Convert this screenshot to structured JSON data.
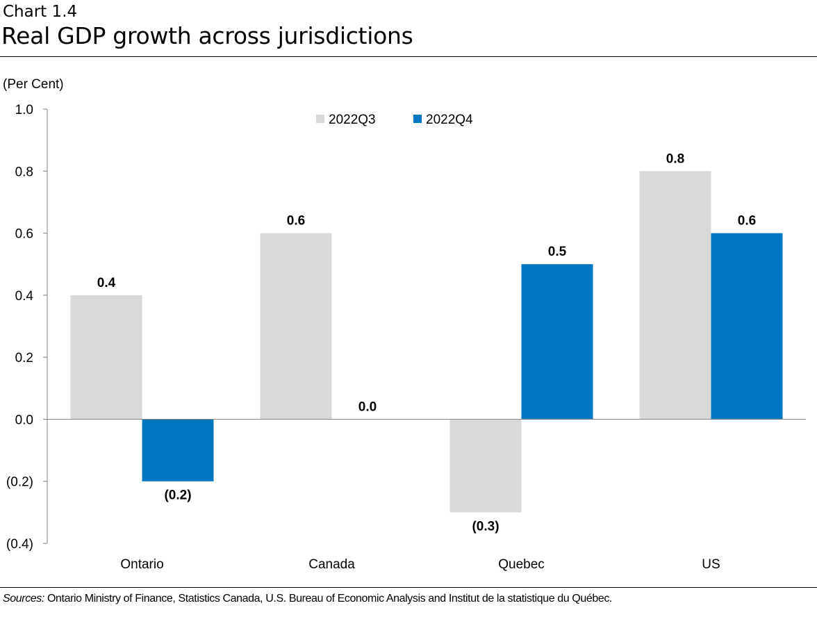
{
  "header": {
    "chart_number": "Chart 1.4",
    "title": "Real GDP growth across jurisdictions"
  },
  "footer": {
    "sources_label": "Sources:",
    "sources_text": "Ontario Ministry of Finance, Statistics Canada, U.S. Bureau of Economic Analysis and Institut de la statistique du Québec."
  },
  "colors": {
    "series_q3": "#d9d9d9",
    "series_q4": "#0077c0",
    "axis": "#7f7f7f"
  },
  "chart_data": {
    "type": "bar",
    "title": "Real GDP growth across jurisdictions",
    "ylabel": "(Per Cent)",
    "xlabel": "",
    "ylim": [
      -0.4,
      1.0
    ],
    "yticks": [
      1.0,
      0.8,
      0.6,
      0.4,
      0.2,
      0.0,
      -0.2,
      -0.4
    ],
    "ytick_labels": [
      "1.0",
      "0.8",
      "0.6",
      "0.4",
      "0.2",
      "0.0",
      "(0.2)",
      "(0.4)"
    ],
    "categories": [
      "Ontario",
      "Canada",
      "Quebec",
      "US"
    ],
    "series": [
      {
        "name": "2022Q3",
        "values": [
          0.4,
          0.6,
          -0.3,
          0.8
        ],
        "labels": [
          "0.4",
          "0.6",
          "(0.3)",
          "0.8"
        ]
      },
      {
        "name": "2022Q4",
        "values": [
          -0.2,
          0.0,
          0.5,
          0.6
        ],
        "labels": [
          "(0.2)",
          "0.0",
          "0.5",
          "0.6"
        ]
      }
    ],
    "legend_position": "top-center",
    "grid": false
  }
}
